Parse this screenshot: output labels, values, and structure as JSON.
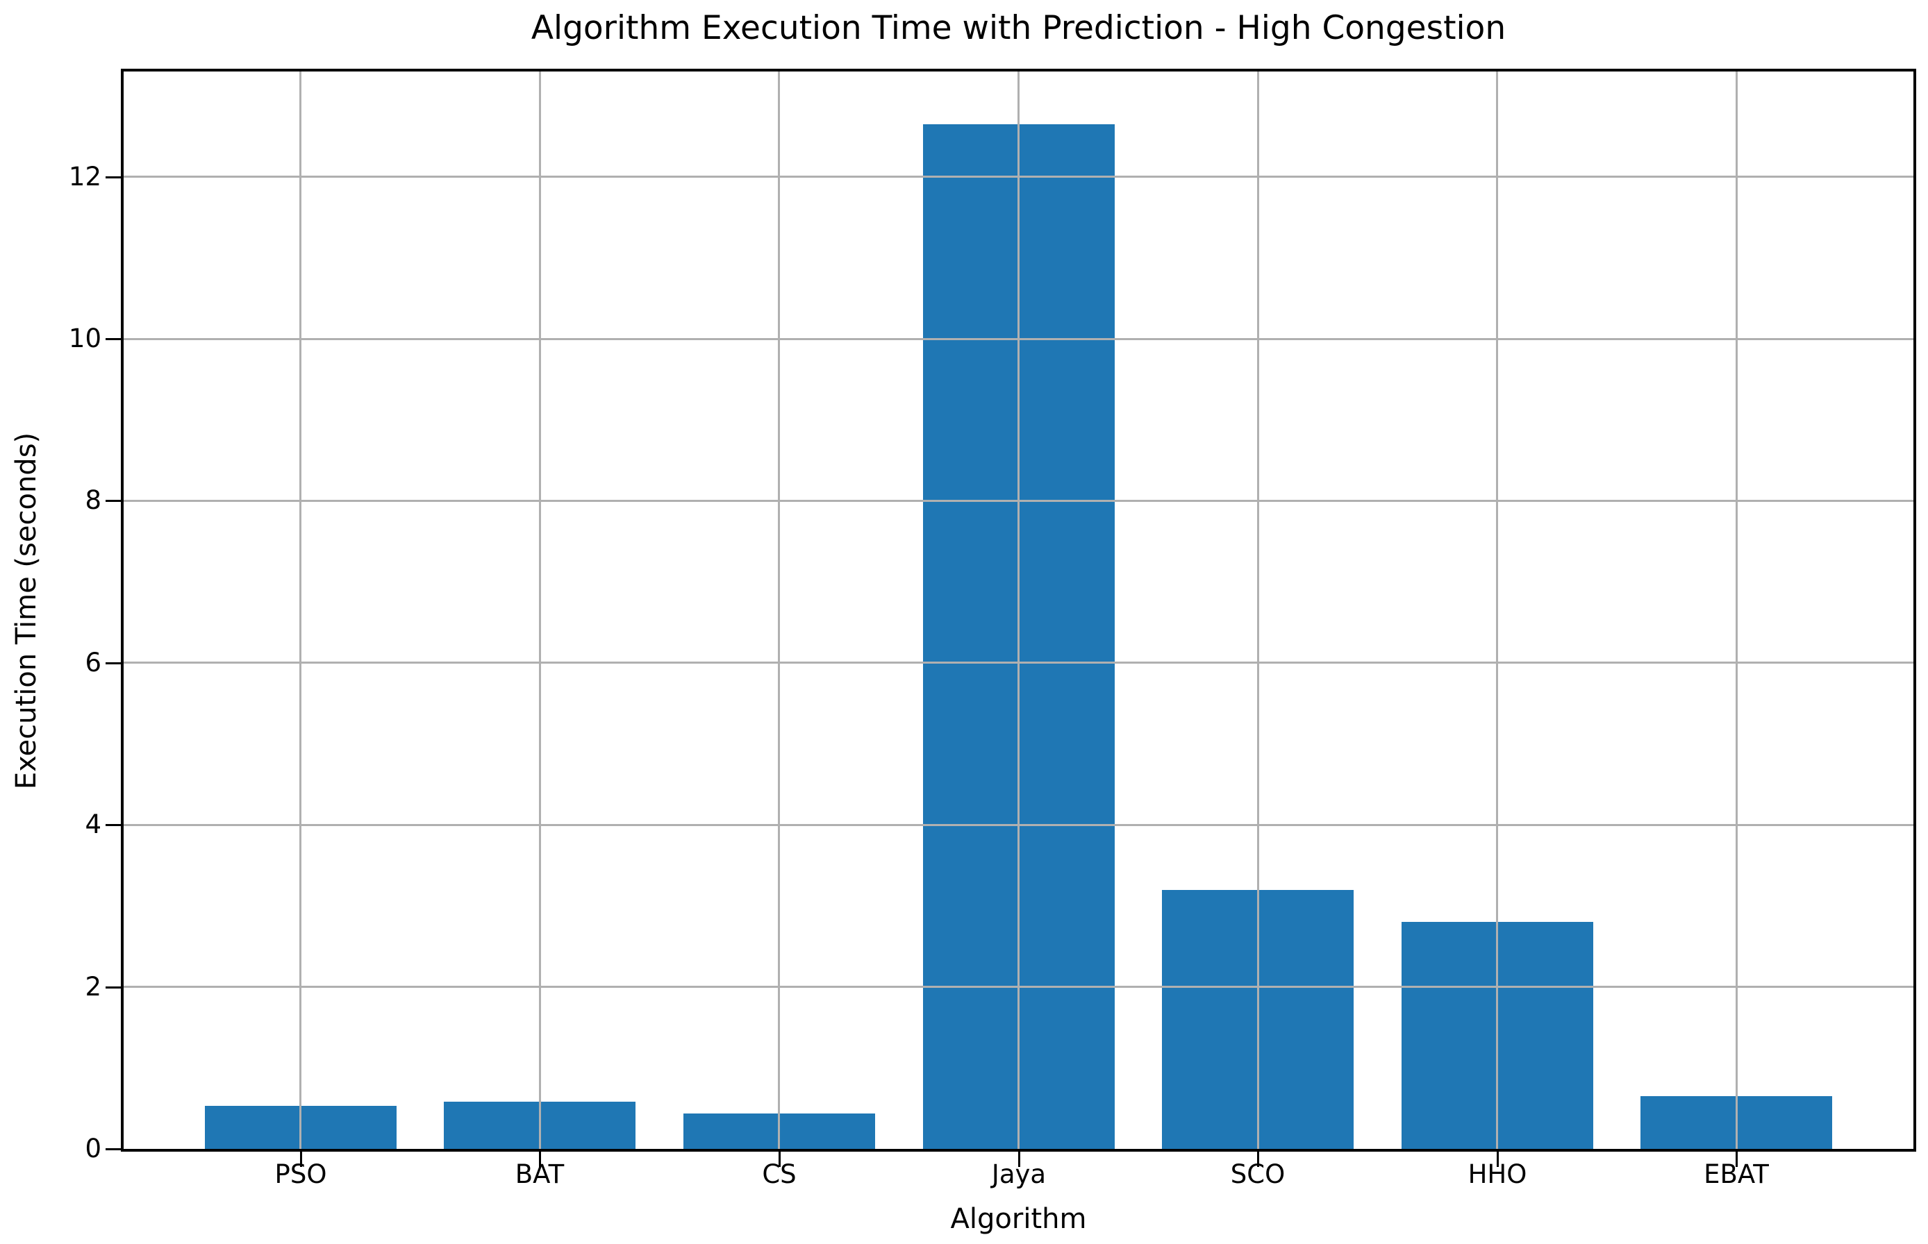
{
  "chart_data": {
    "type": "bar",
    "title": "Algorithm Execution Time with Prediction - High Congestion",
    "xlabel": "Algorithm",
    "ylabel": "Execution Time (seconds)",
    "categories": [
      "PSO",
      "BAT",
      "CS",
      "Jaya",
      "SCO",
      "HHO",
      "EBAT"
    ],
    "values": [
      0.53,
      0.58,
      0.44,
      12.65,
      3.2,
      2.8,
      0.65
    ],
    "yticks": [
      0,
      2,
      4,
      6,
      8,
      10,
      12
    ],
    "ylim": [
      0,
      13.3
    ],
    "grid": true,
    "legend": null,
    "bar_color": "#1f77b4",
    "grid_color": "#b0b0b0",
    "axis_color": "#000000",
    "text_color": "#000000"
  }
}
